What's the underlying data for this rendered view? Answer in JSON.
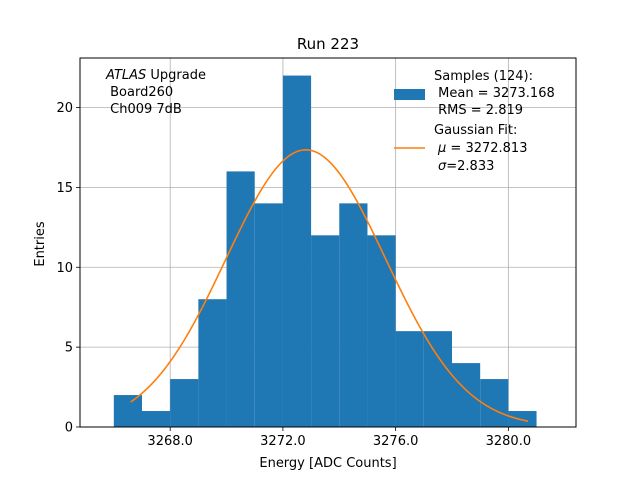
{
  "chart_data": {
    "type": "bar",
    "title": "Run 223",
    "xlabel": "Energy [ADC Counts]",
    "ylabel": "Entries",
    "xlim": [
      3264.8,
      3282.4
    ],
    "ylim": [
      0,
      23.1
    ],
    "xticks": [
      {
        "value": 3268.0,
        "label": "3268.0"
      },
      {
        "value": 3272.0,
        "label": "3272.0"
      },
      {
        "value": 3276.0,
        "label": "3276.0"
      },
      {
        "value": 3280.0,
        "label": "3280.0"
      }
    ],
    "yticks": [
      {
        "value": 0,
        "label": "0"
      },
      {
        "value": 5,
        "label": "5"
      },
      {
        "value": 10,
        "label": "10"
      },
      {
        "value": 15,
        "label": "15"
      },
      {
        "value": 20,
        "label": "20"
      }
    ],
    "grid": true,
    "bin_edges": [
      3266.0,
      3267.0,
      3268.0,
      3269.0,
      3270.0,
      3271.0,
      3272.0,
      3273.0,
      3274.0,
      3275.0,
      3276.0,
      3277.0,
      3278.0,
      3279.0,
      3280.0,
      3281.0
    ],
    "counts": [
      2,
      1,
      3,
      8,
      16,
      14,
      22,
      12,
      14,
      12,
      6,
      6,
      4,
      3,
      1
    ],
    "fit": {
      "type": "gaussian",
      "mu": 3272.813,
      "sigma": 2.833,
      "amplitude": 17.35,
      "x_range": [
        3266.6,
        3280.7
      ]
    },
    "colors": {
      "histogram": "#1f77b4",
      "fit": "#ff7f0e",
      "grid": "#b0b0b0"
    },
    "annotation": {
      "line1_italic": "ATLAS",
      "line1_rest": " Upgrade",
      "line2": " Board260",
      "line3": " Ch009 7dB"
    },
    "legend": {
      "placement": "top-right",
      "hist_lines": [
        "Samples (124):",
        " Mean = 3273.168",
        " RMS = 2.819"
      ],
      "fit_line1": "Gaussian Fit:",
      "fit_mu_symbol": "μ",
      "fit_mu_value": " = 3272.813",
      "fit_sigma_symbol": "σ",
      "fit_sigma_value": "=2.833"
    }
  }
}
